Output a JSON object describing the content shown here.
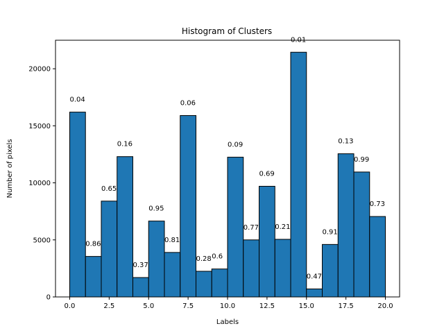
{
  "chart_data": {
    "type": "bar",
    "title": "Histogram of Clusters",
    "xlabel": "Labels",
    "ylabel": "Number of pixels",
    "xlim": [
      -0.9,
      20.9
    ],
    "ylim": [
      0,
      22500
    ],
    "xticks": [
      0,
      2.5,
      5,
      7.5,
      10,
      12.5,
      15,
      17.5,
      20
    ],
    "xtick_labels": [
      "0.0",
      "2.5",
      "5.0",
      "7.5",
      "10.0",
      "12.5",
      "15.0",
      "17.5",
      "20.0"
    ],
    "yticks": [
      0,
      5000,
      10000,
      15000,
      20000
    ],
    "ytick_labels": [
      "0",
      "5000",
      "10000",
      "15000",
      "20000"
    ],
    "grid": false,
    "bar_color": "#1f77b4",
    "edge_color": "#000000",
    "bins": [
      {
        "x0": 0,
        "x1": 1,
        "value": 16200,
        "label": "0.04"
      },
      {
        "x0": 1,
        "x1": 2,
        "value": 3550,
        "label": "0.86"
      },
      {
        "x0": 2,
        "x1": 3,
        "value": 8400,
        "label": "0.65"
      },
      {
        "x0": 3,
        "x1": 4,
        "value": 12300,
        "label": "0.16"
      },
      {
        "x0": 4,
        "x1": 5,
        "value": 1700,
        "label": "0.37"
      },
      {
        "x0": 5,
        "x1": 6,
        "value": 6650,
        "label": "0.95"
      },
      {
        "x0": 6,
        "x1": 7,
        "value": 3900,
        "label": "0.81"
      },
      {
        "x0": 7,
        "x1": 8,
        "value": 15900,
        "label": "0.06"
      },
      {
        "x0": 8,
        "x1": 9,
        "value": 2250,
        "label": "0.28"
      },
      {
        "x0": 9,
        "x1": 10,
        "value": 2450,
        "label": "0.6"
      },
      {
        "x0": 10,
        "x1": 11,
        "value": 12250,
        "label": "0.09"
      },
      {
        "x0": 11,
        "x1": 12,
        "value": 5000,
        "label": "0.77"
      },
      {
        "x0": 12,
        "x1": 13,
        "value": 9700,
        "label": "0.69"
      },
      {
        "x0": 13,
        "x1": 14,
        "value": 5050,
        "label": "0.21"
      },
      {
        "x0": 14,
        "x1": 15,
        "value": 21450,
        "label": "0.01"
      },
      {
        "x0": 15,
        "x1": 16,
        "value": 700,
        "label": "0.47"
      },
      {
        "x0": 16,
        "x1": 17,
        "value": 4600,
        "label": "0.91"
      },
      {
        "x0": 17,
        "x1": 18,
        "value": 12550,
        "label": "0.13"
      },
      {
        "x0": 18,
        "x1": 19,
        "value": 10950,
        "label": "0.99"
      },
      {
        "x0": 19,
        "x1": 20,
        "value": 7050,
        "label": "0.73"
      }
    ]
  }
}
